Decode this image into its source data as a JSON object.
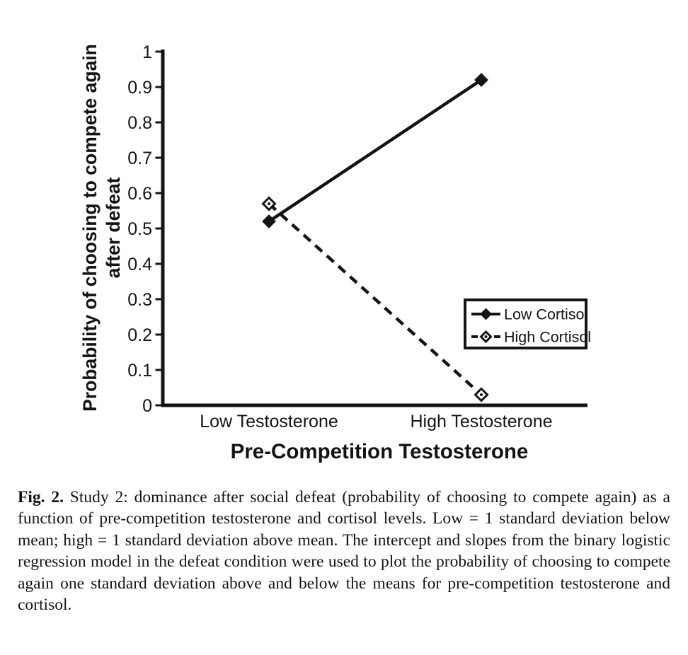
{
  "figure": {
    "caption": {
      "label": "Fig. 2.",
      "text": "Study 2: dominance after social defeat (probability of choosing to compete again) as a function of pre-competition testosterone and cortisol levels. Low = 1 standard deviation below mean; high = 1 standard deviation above mean. The intercept and slopes from the binary logistic regression model in the defeat condition were used to plot the probability of choosing to compete again one standard deviation above and below the means for pre-competition testosterone and cortisol."
    }
  },
  "chart_data": {
    "type": "line",
    "title": "",
    "xlabel": "Pre-Competition Testosterone",
    "ylabel_lines": [
      "Probability of choosing to compete again",
      "after defeat"
    ],
    "categories": [
      "Low Testosterone",
      "High Testosterone"
    ],
    "series": [
      {
        "name": "Low Cortisol",
        "values": [
          0.52,
          0.92
        ],
        "line_style": "solid",
        "marker": "filled-diamond"
      },
      {
        "name": "High Cortisol",
        "values": [
          0.57,
          0.03
        ],
        "line_style": "dashed",
        "marker": "open-diamond"
      }
    ],
    "ylim": [
      0,
      1
    ],
    "ytick_step": 0.1,
    "ytick_labels": [
      "0",
      "0.1",
      "0.2",
      "0.3",
      "0.4",
      "0.5",
      "0.6",
      "0.7",
      "0.8",
      "0.9",
      "1"
    ],
    "legend_position": "middle-right",
    "grid": false,
    "colors": {
      "line": "#141414",
      "background": "#ffffff"
    }
  }
}
